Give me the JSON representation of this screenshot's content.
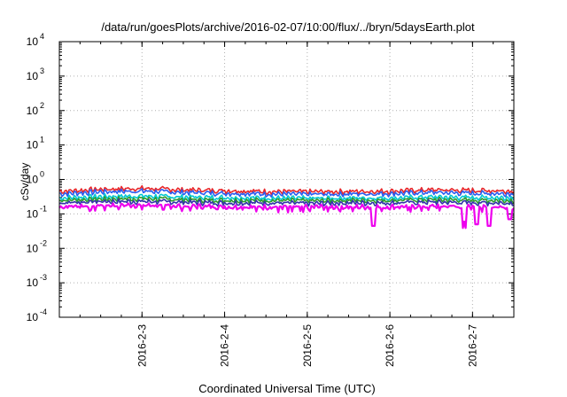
{
  "chart_data": {
    "type": "line",
    "title": "/data/run/goesPlots/archive/2016-02-07/10:00/flux/../bryn/5daysEarth.plot",
    "xlabel": "Coordinated Universal Time (UTC)",
    "ylabel": "cSv/day",
    "y_scale": "log",
    "ylim": [
      0.0001,
      10000
    ],
    "xlim_days": [
      -1.0,
      4.5
    ],
    "grid": true,
    "legend": "none",
    "x_ticks": [
      {
        "label": "2016-2-3",
        "day": 0
      },
      {
        "label": "2016-2-4",
        "day": 1
      },
      {
        "label": "2016-2-5",
        "day": 2
      },
      {
        "label": "2016-2-6",
        "day": 3
      },
      {
        "label": "2016-2-7",
        "day": 4
      }
    ],
    "y_ticks": [
      {
        "base": "10",
        "exp": "-4",
        "value": 0.0001
      },
      {
        "base": "10",
        "exp": "-3",
        "value": 0.001
      },
      {
        "base": "10",
        "exp": "-2",
        "value": 0.01
      },
      {
        "base": "10",
        "exp": "-1",
        "value": 0.1
      },
      {
        "base": "10",
        "exp": "0",
        "value": 1
      },
      {
        "base": "10",
        "exp": "1",
        "value": 10
      },
      {
        "base": "10",
        "exp": "2",
        "value": 100
      },
      {
        "base": "10",
        "exp": "3",
        "value": 1000
      },
      {
        "base": "10",
        "exp": "4",
        "value": 10000
      }
    ],
    "series": [
      {
        "color": "#e8262a",
        "x": [
          -1.0,
          -0.5,
          0,
          0.5,
          1,
          1.5,
          2,
          2.5,
          3,
          3.5,
          4,
          4.5
        ],
        "y": [
          0.45,
          0.52,
          0.55,
          0.5,
          0.48,
          0.45,
          0.44,
          0.45,
          0.46,
          0.5,
          0.48,
          0.47
        ]
      },
      {
        "color": "#2a5cf0",
        "x": [
          -1.0,
          -0.5,
          0,
          0.5,
          1,
          1.5,
          2,
          2.5,
          3,
          3.5,
          4,
          4.5
        ],
        "y": [
          0.38,
          0.44,
          0.46,
          0.42,
          0.4,
          0.38,
          0.37,
          0.38,
          0.39,
          0.42,
          0.4,
          0.39
        ]
      },
      {
        "color": "#00c8d0",
        "x": [
          -1.0,
          -0.5,
          0,
          0.5,
          1,
          1.5,
          2,
          2.5,
          3,
          3.5,
          4,
          4.5
        ],
        "y": [
          0.29,
          0.32,
          0.33,
          0.31,
          0.3,
          0.29,
          0.28,
          0.29,
          0.29,
          0.31,
          0.3,
          0.3
        ]
      },
      {
        "color": "#2e9a2e",
        "x": [
          -1.0,
          -0.5,
          0,
          0.5,
          1,
          1.5,
          2,
          2.5,
          3,
          3.5,
          4,
          4.5
        ],
        "y": [
          0.25,
          0.27,
          0.28,
          0.26,
          0.25,
          0.25,
          0.24,
          0.25,
          0.25,
          0.26,
          0.25,
          0.25
        ]
      },
      {
        "color": "#3333aa",
        "x": [
          -1.0,
          -0.5,
          0,
          0.5,
          1,
          1.5,
          2,
          2.5,
          3,
          3.5,
          4,
          4.5
        ],
        "y": [
          0.21,
          0.23,
          0.23,
          0.22,
          0.21,
          0.21,
          0.2,
          0.21,
          0.21,
          0.22,
          0.21,
          0.21
        ]
      },
      {
        "color": "#ee00ee",
        "x": [
          -1.0,
          -0.5,
          0,
          0.5,
          1,
          1.5,
          2,
          2.5,
          3,
          3.5,
          4,
          4.5
        ],
        "y": [
          0.16,
          0.18,
          0.18,
          0.17,
          0.16,
          0.16,
          0.16,
          0.16,
          0.16,
          0.17,
          0.16,
          0.16
        ]
      }
    ],
    "dips": [
      {
        "day": 2.8,
        "value": 0.045
      },
      {
        "day": 3.9,
        "value": 0.06
      },
      {
        "day": 4.05,
        "value": 0.05
      },
      {
        "day": 4.2,
        "value": 0.045
      },
      {
        "day": 4.45,
        "value": 0.07
      }
    ]
  }
}
